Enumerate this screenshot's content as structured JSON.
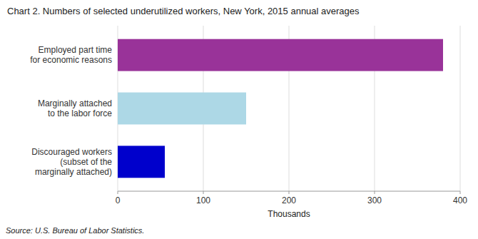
{
  "chart_data": {
    "type": "bar",
    "orientation": "horizontal",
    "title": "Chart 2. Numbers of selected underutilized workers, New York, 2015 annual averages",
    "categories": [
      "Discouraged workers\n(subset of the\nmarginally attached)",
      "Marginally attached\nto the labor force",
      "Employed part time\nfor economic reasons"
    ],
    "values": [
      55,
      150,
      380
    ],
    "colors": [
      "#0000cc",
      "#add8e6",
      "#993399"
    ],
    "xlabel": "Thousands",
    "xlim": [
      0,
      400
    ],
    "xticks": [
      0,
      100,
      200,
      300,
      400
    ],
    "grid": true,
    "annotations": [
      "Source: U.S. Bureau of Labor Statistics."
    ]
  }
}
